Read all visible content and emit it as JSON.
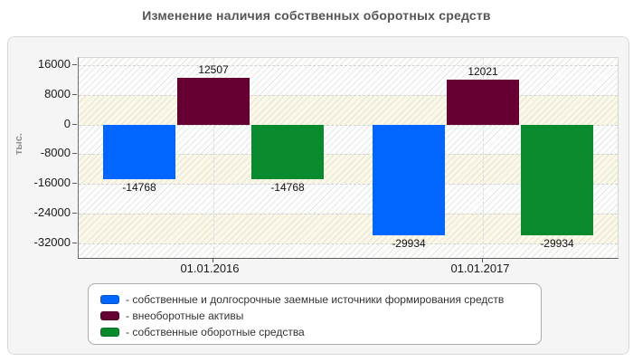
{
  "chart_data": {
    "type": "bar",
    "title": "Изменение наличия собственных оборотных средств",
    "ylabel": "тыс.",
    "categories": [
      "01.01.2016",
      "01.01.2017"
    ],
    "series": [
      {
        "name": "собственные и долгосрочные заемные источники формирования средств",
        "color": "#0066ff",
        "values": [
          -14768,
          -29934
        ]
      },
      {
        "name": "внеоборотные активы",
        "color": "#660033",
        "values": [
          12507,
          12021
        ]
      },
      {
        "name": "собственные оборотные средства",
        "color": "#088a2d",
        "values": [
          -14768,
          -29934
        ]
      }
    ],
    "bar_labels": [
      [
        "-14768",
        "-29934"
      ],
      [
        "12507",
        "12021"
      ],
      [
        "-14768",
        "-29934"
      ]
    ],
    "yticks": [
      16000,
      8000,
      0,
      -8000,
      -16000,
      -24000,
      -32000
    ],
    "ylim": [
      -36000,
      18000
    ],
    "grid": true,
    "grid_style": "dashed",
    "legend_position": "bottom"
  },
  "legend": {
    "items": [
      {
        "label": "- собственные и долгосрочные заемные источники формирования средств"
      },
      {
        "label": "- внеоборотные активы"
      },
      {
        "label": "- собственные оборотные средства"
      }
    ]
  },
  "colors": {
    "title": "#555555",
    "card_background": "#f5f5f5",
    "plot_cream_band": "#faf7e2",
    "series_blue": "#0066ff",
    "series_maroon": "#660033",
    "series_green": "#088a2d"
  }
}
